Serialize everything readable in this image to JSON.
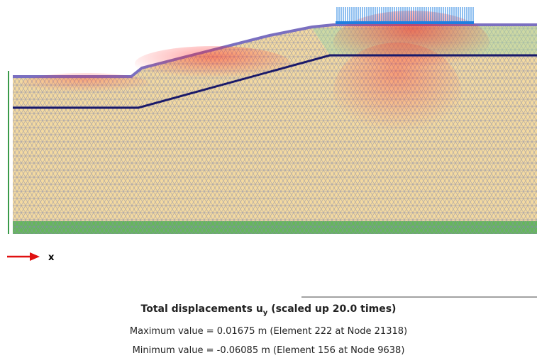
{
  "axis_label": "x",
  "caption": {
    "title": "Total displacements u",
    "title_subscript": "y",
    "title_suffix": "(scaled up 20.0 times)",
    "maximum": "Maximum value = 0.01675 m (Element 222 at Node 21318)",
    "minimum": "Minimum value = -0.06085 m (Element 156 at Node 9638)"
  }
}
